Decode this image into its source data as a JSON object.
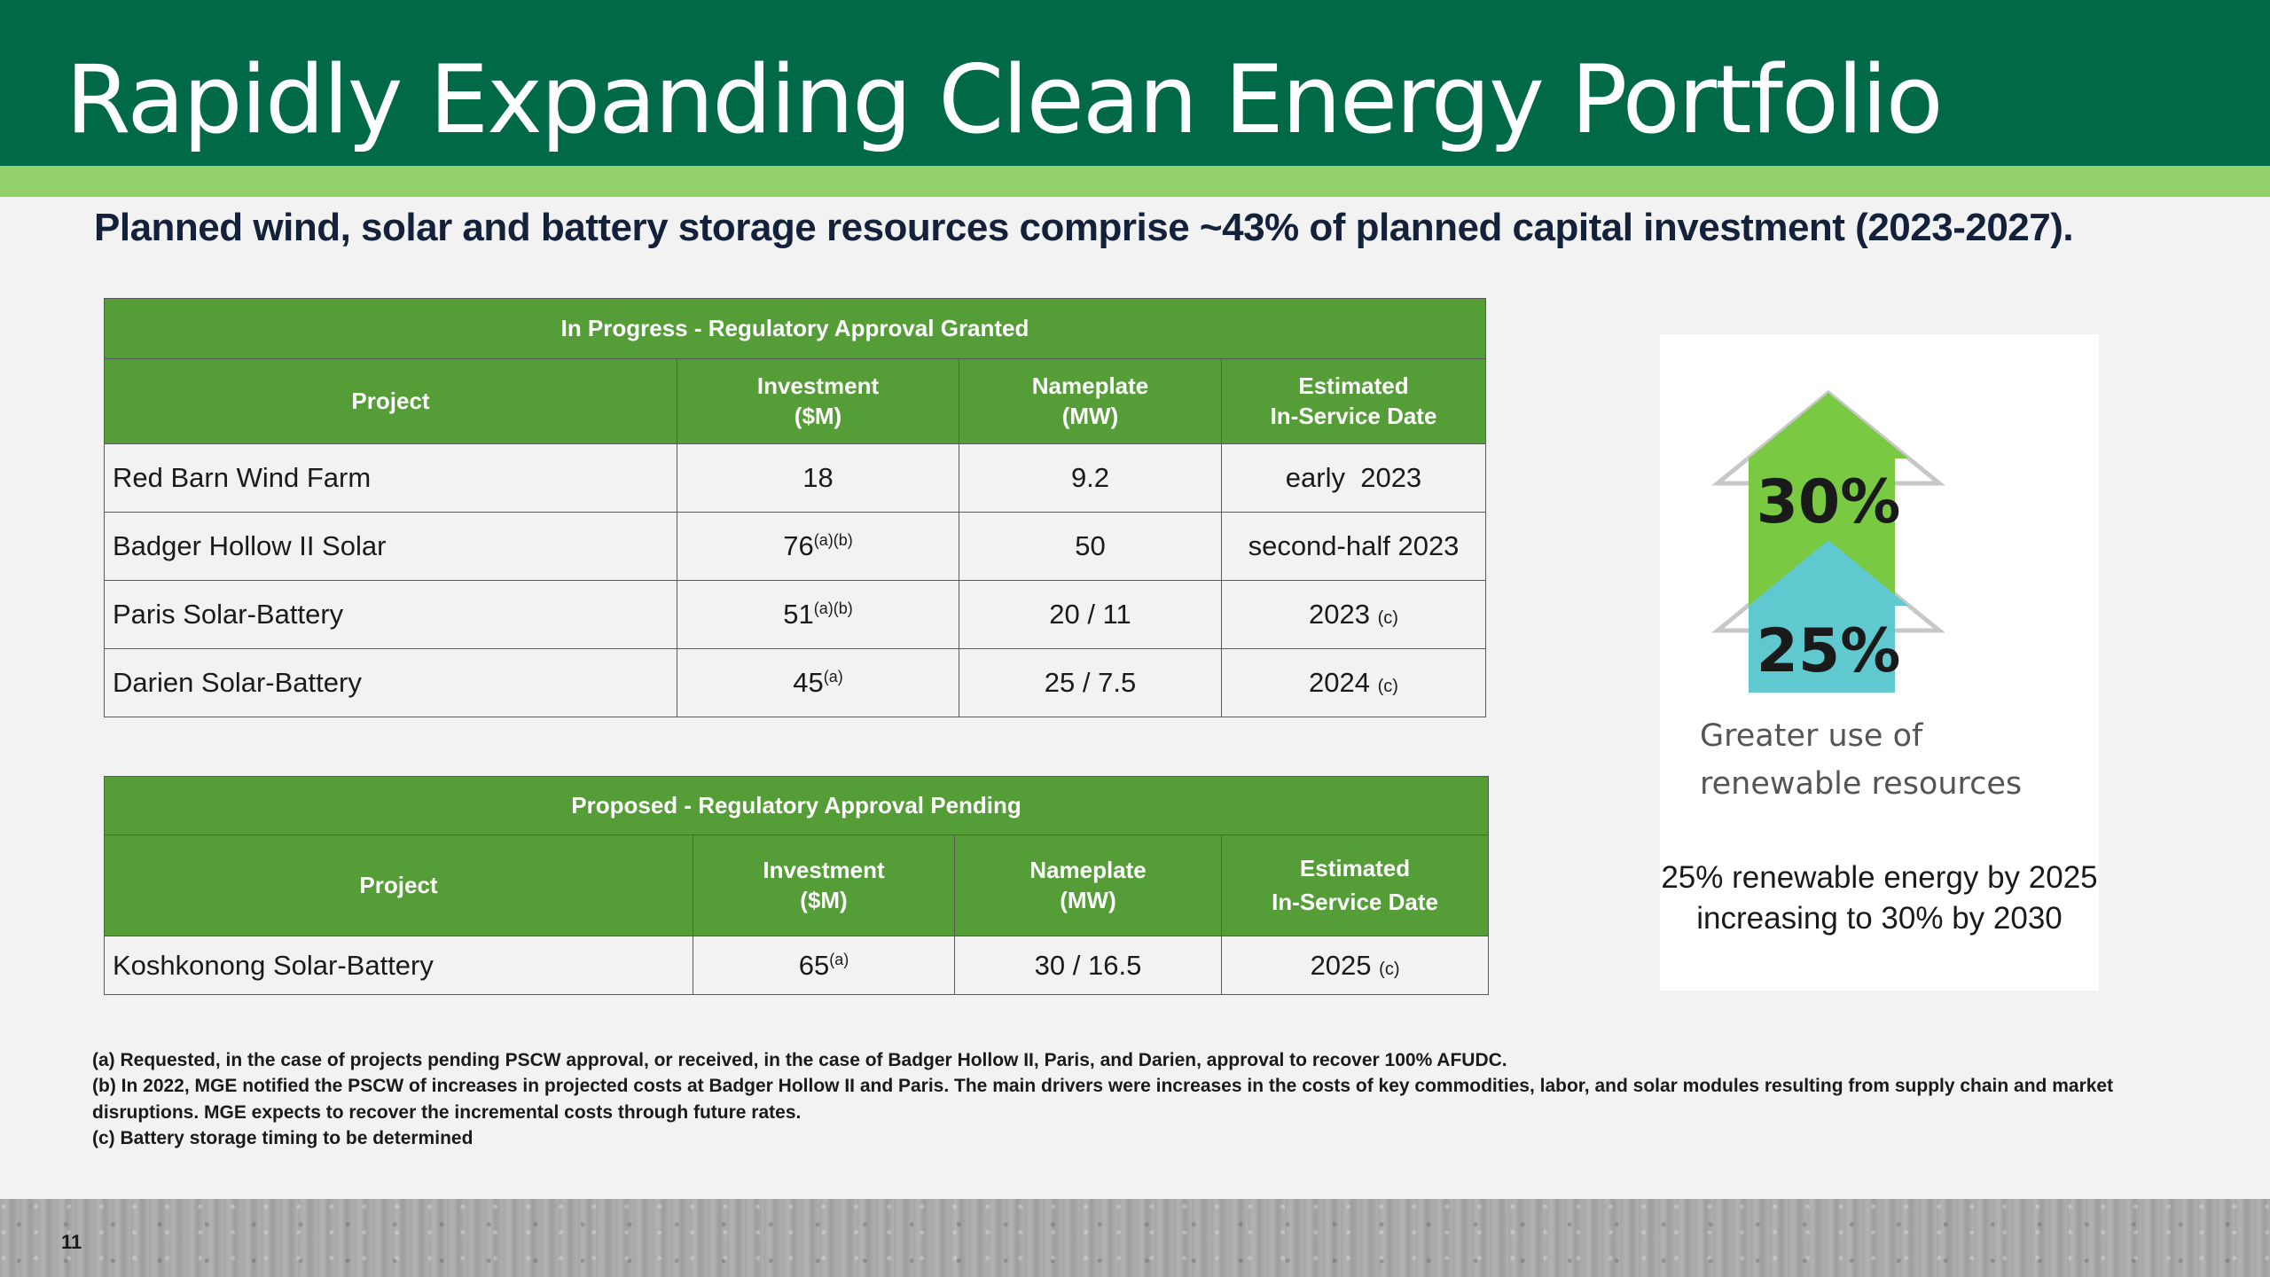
{
  "slide": {
    "title": "Rapidly Expanding Clean Energy Portfolio",
    "subtitle": "Planned wind, solar and battery storage resources comprise ~43% of planned capital investment (2023-2027).",
    "page_number": "11"
  },
  "colors": {
    "header_green": "#006a48",
    "accent_light_green": "#92d06b",
    "table_header_green": "#559d37",
    "arrow_green": "#7ac943",
    "arrow_teal": "#5fc9cf"
  },
  "in_progress_table": {
    "caption": "In Progress - Regulatory Approval Granted",
    "headers": {
      "project": "Project",
      "investment_line1": "Investment",
      "investment_line2": "($M)",
      "nameplate_line1": "Nameplate",
      "nameplate_line2": "(MW)",
      "date_line1": "Estimated",
      "date_line2": "In-Service Date"
    },
    "rows": [
      {
        "project": "Red Barn Wind Farm",
        "investment": "18",
        "investment_note": "",
        "nameplate": "9.2",
        "date": "early  2023",
        "date_note": ""
      },
      {
        "project": "Badger Hollow II Solar",
        "investment": "76",
        "investment_note": "(a)(b)",
        "nameplate": "50",
        "date": "second-half 2023",
        "date_note": ""
      },
      {
        "project": "Paris Solar-Battery",
        "investment": "51",
        "investment_note": "(a)(b)",
        "nameplate": "20 / 11",
        "date": "2023",
        "date_note": "(c)"
      },
      {
        "project": "Darien Solar-Battery",
        "investment": "45",
        "investment_note": "(a)",
        "nameplate": "25 / 7.5",
        "date": "2024",
        "date_note": "(c)"
      }
    ]
  },
  "proposed_table": {
    "caption": "Proposed - Regulatory Approval Pending",
    "headers": {
      "project": "Project",
      "investment_line1": "Investment",
      "investment_line2": "($M)",
      "nameplate_line1": "Nameplate",
      "nameplate_line2": "(MW)",
      "date_line1": "Estimated",
      "date_line2": "In-Service Date"
    },
    "rows": [
      {
        "project": "Koshkonong Solar-Battery",
        "investment": "65",
        "investment_note": "(a)",
        "nameplate": "30 / 16.5",
        "date": "2025",
        "date_note": "(c)"
      }
    ]
  },
  "side_panel": {
    "arrow_top_label": "30%",
    "arrow_bottom_label": "25%",
    "caption_line1": "Greater use of",
    "caption_line2": "renewable resources",
    "target_line1": "25% renewable energy by 2025",
    "target_line2": "increasing to 30% by 2030"
  },
  "footnotes": [
    "(a)  Requested, in the case of projects pending PSCW approval, or received, in the case of Badger Hollow II, Paris, and Darien, approval to recover 100% AFUDC.",
    "(b) In 2022, MGE notified the PSCW of increases in projected costs at Badger Hollow II and Paris. The main drivers were increases in the costs of key commodities, labor, and solar modules resulting from supply chain and market disruptions. MGE expects to recover the incremental costs through future rates.",
    "(c)  Battery storage timing to be determined"
  ]
}
